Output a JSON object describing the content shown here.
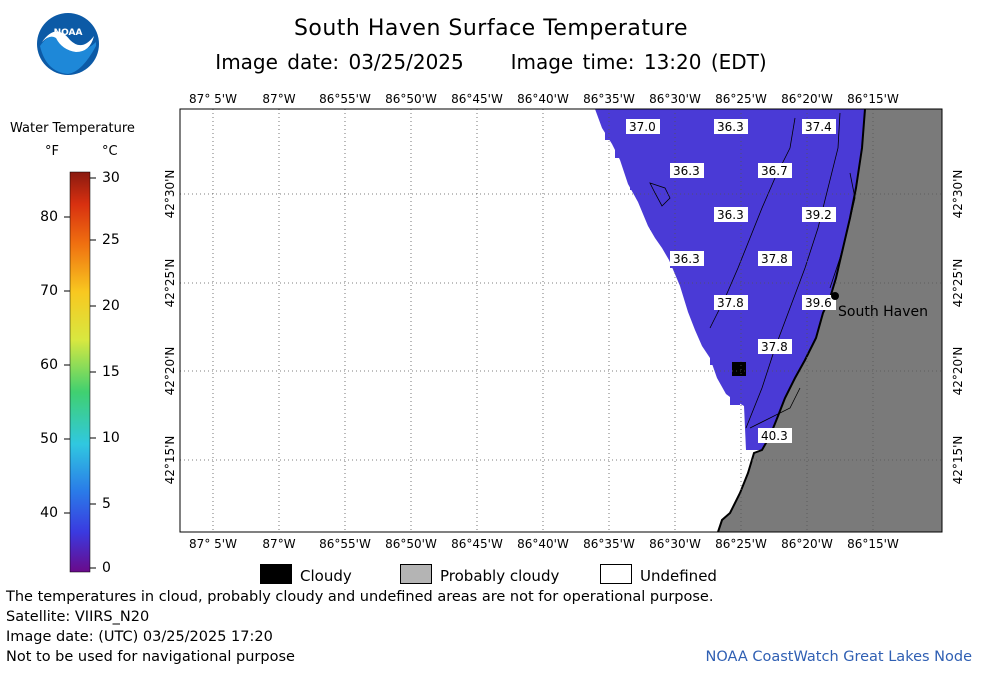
{
  "header": {
    "title": "South Haven Surface Temperature",
    "image_date_label": "Image date: 03/25/2025",
    "image_time_label": "Image time: 13:20 (EDT)",
    "logo_text": "NOAA"
  },
  "color_scale": {
    "title": "Water Temperature",
    "unit_f": "°F",
    "unit_c": "°C",
    "ticks_f": [
      "80",
      "70",
      "60",
      "50",
      "40"
    ],
    "ticks_c": [
      "30",
      "25",
      "20",
      "15",
      "10",
      "5",
      "0"
    ],
    "range_c": [
      0,
      30
    ]
  },
  "map": {
    "longitude_labels": [
      "87° 5'W",
      "87°W",
      "86°55'W",
      "86°50'W",
      "86°45'W",
      "86°40'W",
      "86°35'W",
      "86°30'W",
      "86°25'W",
      "86°20'W",
      "86°15'W"
    ],
    "latitude_labels": [
      "42°30'N",
      "42°25'N",
      "42°20'N",
      "42°15'N"
    ],
    "temperature_labels": [
      "37.0",
      "36.3",
      "37.4",
      "36.3",
      "36.7",
      "36.3",
      "39.2",
      "36.3",
      "37.8",
      "37.8",
      "39.6",
      "37.8",
      "40.3"
    ],
    "city_label": "South Haven",
    "colors": {
      "water": "#4a3ad6",
      "land": "#7a7a7a",
      "cloud": "#000000"
    }
  },
  "key": {
    "cloudy": "Cloudy",
    "probably_cloudy": "Probably cloudy",
    "undefined": "Undefined"
  },
  "notes": {
    "disclaimer": "The temperatures in cloud, probably cloudy and undefined areas are not for operational purpose.",
    "satellite": "Satellite: VIIRS_N20",
    "utc_date": "Image date: (UTC) 03/25/2025  17:20",
    "navigation": "Not to be used for navigational purpose",
    "credit": "NOAA CoastWatch Great Lakes Node"
  }
}
